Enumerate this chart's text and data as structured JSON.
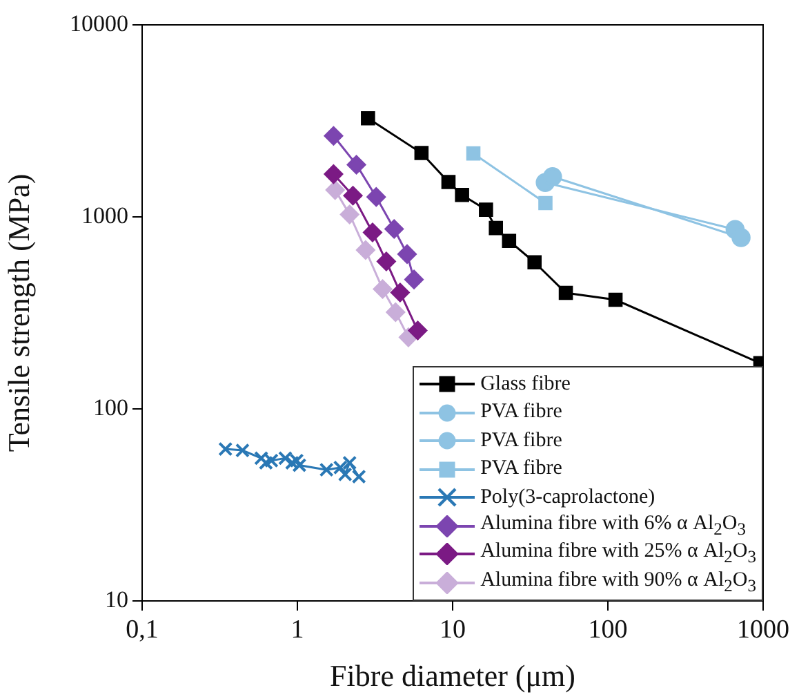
{
  "chart_data": {
    "type": "line",
    "xlabel": "Fibre diameter (μm)",
    "ylabel": "Tensile strength (MPa)",
    "log": "xy",
    "grid": false,
    "legend": "bottom right",
    "xlim": [
      0.1,
      1000
    ],
    "xticks": [
      {
        "value": 0.1,
        "label": "0,1"
      },
      1,
      10,
      100,
      1000
    ],
    "ylim": [
      10,
      10000
    ],
    "yticks": [
      10,
      100,
      1000,
      10000
    ],
    "series": [
      {
        "name": "Glass fibre",
        "color": "#000000",
        "marker": "square",
        "x": [
          2.85,
          6.3,
          9.4,
          11.5,
          16.4,
          19,
          23.1,
          33.7,
          53.6,
          112,
          960
        ],
        "values": [
          3260,
          2150,
          1520,
          1300,
          1090,
          875,
          750,
          580,
          402,
          370,
          173
        ]
      },
      {
        "name": "PVA fibre",
        "color": "#8ec3e3",
        "marker": "circle",
        "x": [
          44,
          721
        ],
        "values": [
          1620,
          780
        ]
      },
      {
        "name": "PVA fibre",
        "color": "#8ec3e3",
        "marker": "circle",
        "x": [
          39.5,
          660
        ],
        "values": [
          1510,
          860
        ]
      },
      {
        "name": "PVA fibre",
        "color": "#8ec3e3",
        "marker": "square",
        "x": [
          13.6,
          39.6
        ],
        "values": [
          2140,
          1180
        ]
      },
      {
        "name": "Poly(3-caprolactone)",
        "color": "#2a78b5",
        "marker": "cross",
        "x": [
          0.344,
          0.443,
          0.585,
          0.627,
          0.68,
          0.836,
          0.925,
          0.99,
          1.03,
          1.54,
          1.89,
          2.03,
          2.17,
          2.49
        ],
        "values": [
          61.8,
          60.8,
          55.4,
          52.4,
          53.8,
          55.4,
          52.4,
          53.8,
          50.9,
          48.2,
          49.5,
          45.6,
          52.4,
          44.4
        ]
      },
      {
        "name": "Alumina fibre with 6% α Al$_{2}$O$_{3}$",
        "color": "#7c45b0",
        "marker": "diamond",
        "x": [
          1.71,
          2.4,
          3.22,
          4.2,
          5.09,
          5.64
        ],
        "values": [
          2640,
          1870,
          1270,
          865,
          640,
          472
        ]
      },
      {
        "name": "Alumina fibre with 25% α Al$_{2}$O$_{3}$",
        "color": "#7b1a84",
        "marker": "diamond",
        "x": [
          1.71,
          2.28,
          3.05,
          3.74,
          4.59,
          5.96
        ],
        "values": [
          1670,
          1290,
          830,
          586,
          404,
          256
        ]
      },
      {
        "name": "Alumina fibre with 90% α Al$_{2}$O$_{3}$",
        "color": "#c9aed9",
        "marker": "diamond",
        "x": [
          1.75,
          2.17,
          2.75,
          3.54,
          4.29,
          5.19
        ],
        "values": [
          1380,
          1030,
          672,
          421,
          319,
          236
        ]
      }
    ]
  }
}
